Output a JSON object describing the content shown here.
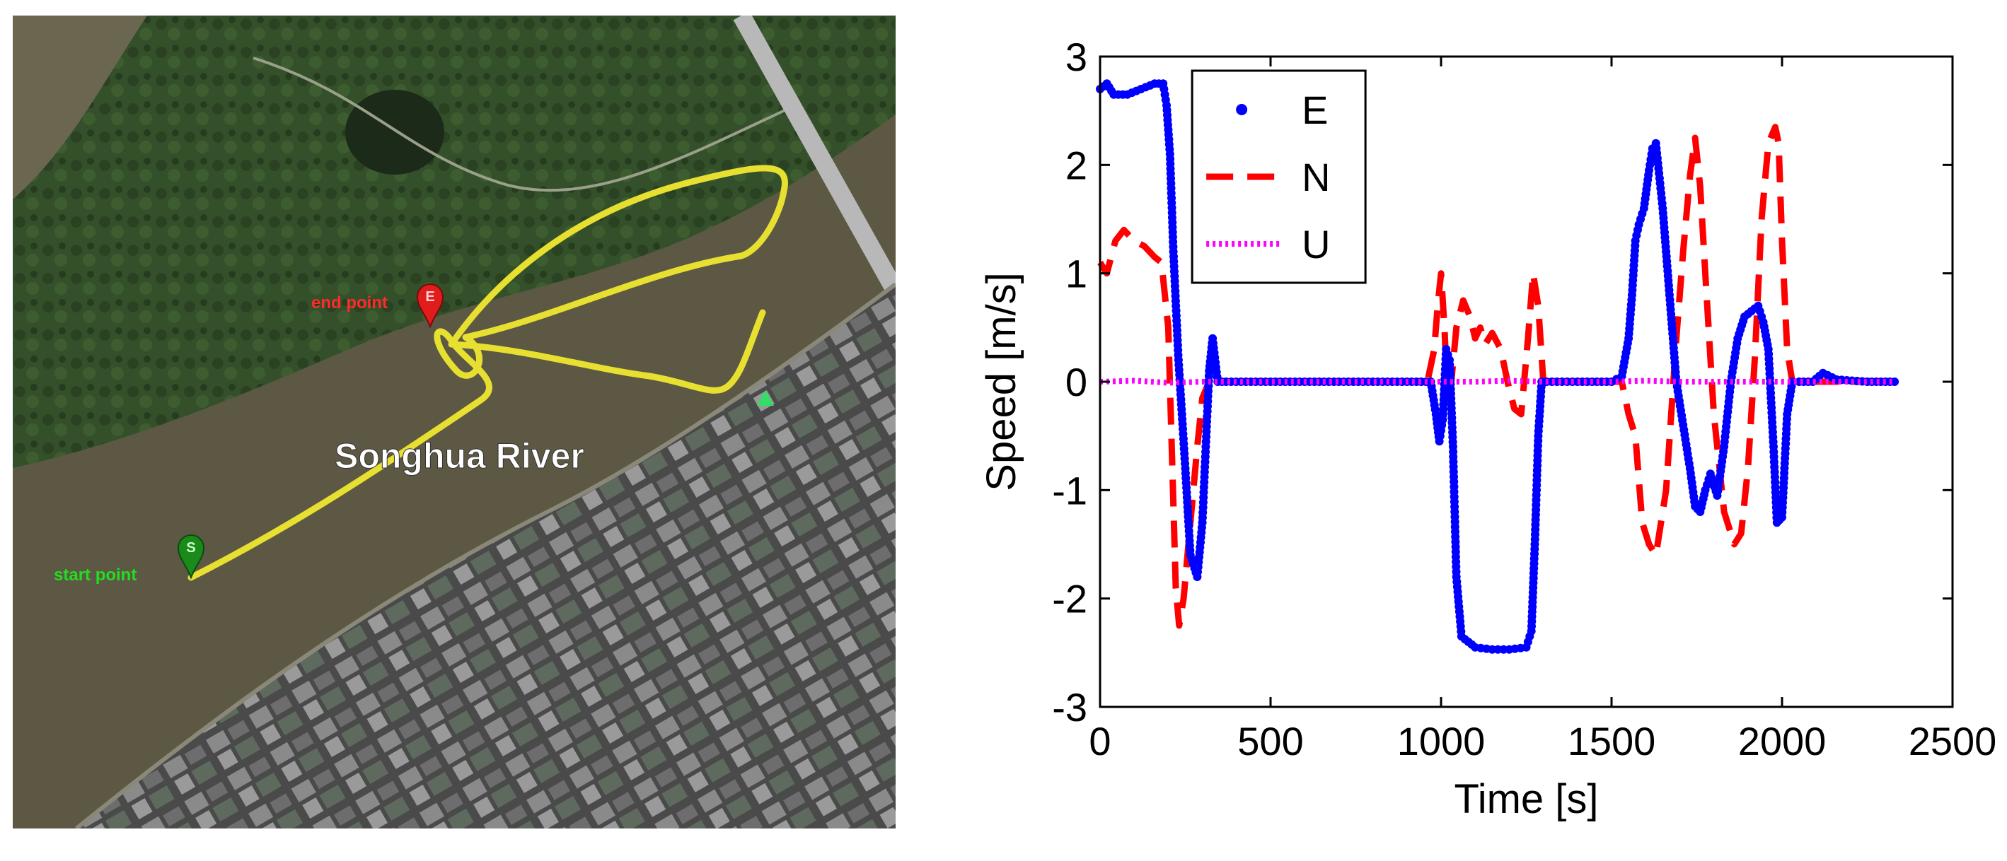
{
  "map": {
    "river_label": "Songhua River",
    "start_label": "start point",
    "end_label": "end point",
    "start_marker_letter": "S",
    "end_marker_letter": "E",
    "colors": {
      "track": "#e8e030",
      "start": "#1aa31a",
      "end": "#e01c1c",
      "river": "#5b5742",
      "vegetation": "#2f4a22"
    }
  },
  "chart_data": {
    "type": "scatter",
    "xlabel": "Time [s]",
    "ylabel": "Speed [m/s]",
    "xlim": [
      0,
      2500
    ],
    "ylim": [
      -3,
      3
    ],
    "xticks": [
      0,
      500,
      1000,
      1500,
      2000,
      2500
    ],
    "yticks": [
      -3,
      -2,
      -1,
      0,
      1,
      2,
      3
    ],
    "grid": false,
    "legend_position": "top-center",
    "series": [
      {
        "name": "E",
        "style": "dots",
        "color": "#0000ff",
        "x": [
          0,
          20,
          40,
          80,
          120,
          160,
          185,
          195,
          205,
          215,
          230,
          250,
          265,
          285,
          300,
          310,
          320,
          330,
          345,
          370,
          500,
          700,
          900,
          970,
          985,
          995,
          1005,
          1015,
          1025,
          1035,
          1045,
          1060,
          1100,
          1150,
          1200,
          1250,
          1265,
          1275,
          1285,
          1295,
          1310,
          1400,
          1500,
          1530,
          1550,
          1560,
          1570,
          1580,
          1595,
          1610,
          1620,
          1630,
          1650,
          1670,
          1690,
          1710,
          1730,
          1745,
          1760,
          1775,
          1790,
          1810,
          1830,
          1850,
          1870,
          1890,
          1910,
          1930,
          1945,
          1960,
          1975,
          1985,
          2000,
          2015,
          2030,
          2050,
          2090,
          2120,
          2160,
          2250,
          2330
        ],
        "y": [
          2.7,
          2.75,
          2.65,
          2.65,
          2.7,
          2.75,
          2.75,
          2.55,
          2.1,
          1.2,
          0.2,
          -0.8,
          -1.6,
          -1.8,
          -1.3,
          -0.6,
          0.1,
          0.4,
          0.0,
          0.0,
          0.0,
          0.0,
          0.0,
          0.0,
          -0.3,
          -0.55,
          -0.35,
          0.3,
          0.2,
          -0.6,
          -1.8,
          -2.35,
          -2.45,
          -2.47,
          -2.47,
          -2.45,
          -2.3,
          -1.5,
          -0.5,
          0.0,
          0.0,
          0.0,
          0.0,
          0.05,
          0.4,
          0.8,
          1.3,
          1.45,
          1.6,
          1.95,
          2.15,
          2.2,
          1.6,
          0.8,
          0.0,
          -0.4,
          -0.8,
          -1.15,
          -1.2,
          -1.0,
          -0.85,
          -1.05,
          -0.6,
          0.0,
          0.4,
          0.6,
          0.65,
          0.7,
          0.55,
          0.3,
          -0.6,
          -1.3,
          -1.25,
          -0.3,
          0.0,
          0.0,
          0.0,
          0.08,
          0.02,
          0.0,
          0.0
        ]
      },
      {
        "name": "N",
        "style": "dashed",
        "color": "#ff0000",
        "x": [
          0,
          20,
          45,
          70,
          100,
          130,
          160,
          180,
          200,
          212,
          222,
          232,
          245,
          265,
          285,
          300,
          320,
          340,
          360,
          500,
          700,
          900,
          960,
          980,
          990,
          1000,
          1010,
          1020,
          1030,
          1045,
          1065,
          1085,
          1100,
          1115,
          1130,
          1150,
          1175,
          1195,
          1215,
          1235,
          1255,
          1270,
          1285,
          1300,
          1320,
          1400,
          1500,
          1530,
          1550,
          1570,
          1590,
          1610,
          1630,
          1660,
          1690,
          1710,
          1730,
          1745,
          1760,
          1775,
          1800,
          1830,
          1860,
          1880,
          1900,
          1920,
          1940,
          1960,
          1980,
          1990,
          2000,
          2015,
          2030,
          2060,
          2100,
          2200,
          2330
        ],
        "y": [
          1.1,
          1.0,
          1.3,
          1.4,
          1.3,
          1.25,
          1.15,
          1.1,
          0.5,
          -0.8,
          -1.9,
          -2.25,
          -2.0,
          -1.3,
          -0.6,
          -0.15,
          0.0,
          0.0,
          0.0,
          0.0,
          0.0,
          0.0,
          0.0,
          0.3,
          0.7,
          1.0,
          0.5,
          -0.2,
          0.0,
          0.5,
          0.75,
          0.6,
          0.4,
          0.5,
          0.35,
          0.45,
          0.3,
          0.0,
          -0.25,
          -0.3,
          0.4,
          1.0,
          0.7,
          0.0,
          0.0,
          0.0,
          0.0,
          0.0,
          -0.3,
          -0.5,
          -1.3,
          -1.5,
          -1.6,
          -1.0,
          0.4,
          1.2,
          1.9,
          2.25,
          1.8,
          1.0,
          -0.3,
          -1.2,
          -1.5,
          -1.4,
          -0.8,
          0.2,
          1.5,
          2.2,
          2.35,
          2.2,
          1.3,
          0.3,
          0.0,
          0.0,
          0.0,
          0.0,
          0.0
        ]
      },
      {
        "name": "U",
        "style": "dotted",
        "color": "#ff00ff",
        "x": [
          0,
          100,
          200,
          300,
          400,
          500,
          600,
          700,
          800,
          900,
          1000,
          1100,
          1200,
          1300,
          1400,
          1500,
          1600,
          1700,
          1800,
          1900,
          2000,
          2100,
          2200,
          2330
        ],
        "y": [
          0.0,
          0.01,
          -0.01,
          0.0,
          0.0,
          0.0,
          0.0,
          0.0,
          0.0,
          0.0,
          0.0,
          0.0,
          0.01,
          0.0,
          0.0,
          0.0,
          0.01,
          0.0,
          0.0,
          0.0,
          0.0,
          0.0,
          0.0,
          0.0
        ]
      }
    ]
  }
}
